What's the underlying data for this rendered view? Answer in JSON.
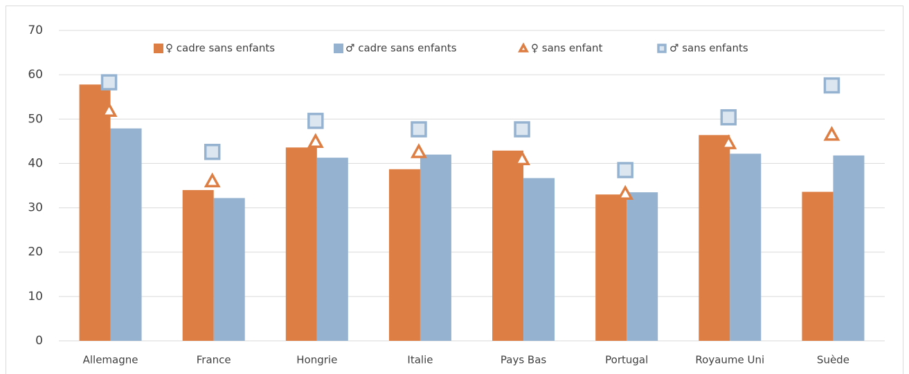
{
  "chart_data": {
    "type": "bar",
    "categories": [
      "Allemagne",
      "France",
      "Hongrie",
      "Italie",
      "Pays Bas",
      "Portugal",
      "Royaume Uni",
      "Suède"
    ],
    "series": [
      {
        "name": "♀ cadre sans enfants",
        "color": "#dd7f44",
        "marker": "bar",
        "values": [
          57.8,
          34,
          43.6,
          38.7,
          42.9,
          33,
          46.4,
          33.6
        ]
      },
      {
        "name": "♂ cadre sans enfants",
        "color": "#95b3d1",
        "marker": "bar",
        "values": [
          47.9,
          32.2,
          41.3,
          42,
          36.7,
          33.5,
          42.2,
          41.8
        ]
      },
      {
        "name": "♀ sans enfant",
        "color": "#dd7f44",
        "marker": "triangle",
        "values": [
          51.9,
          36,
          44.9,
          42.6,
          41,
          33.2,
          44.6,
          46.5
        ]
      },
      {
        "name": "♂ sans enfants",
        "color": "#95b3d1",
        "marker": "square",
        "values": [
          58.3,
          42.6,
          49.6,
          47.7,
          47.7,
          38.5,
          50.4,
          57.6
        ]
      }
    ],
    "ylim": [
      0,
      70
    ],
    "yticks": [
      0,
      10,
      20,
      30,
      40,
      50,
      60,
      70
    ],
    "grid": true,
    "legend": "top"
  }
}
